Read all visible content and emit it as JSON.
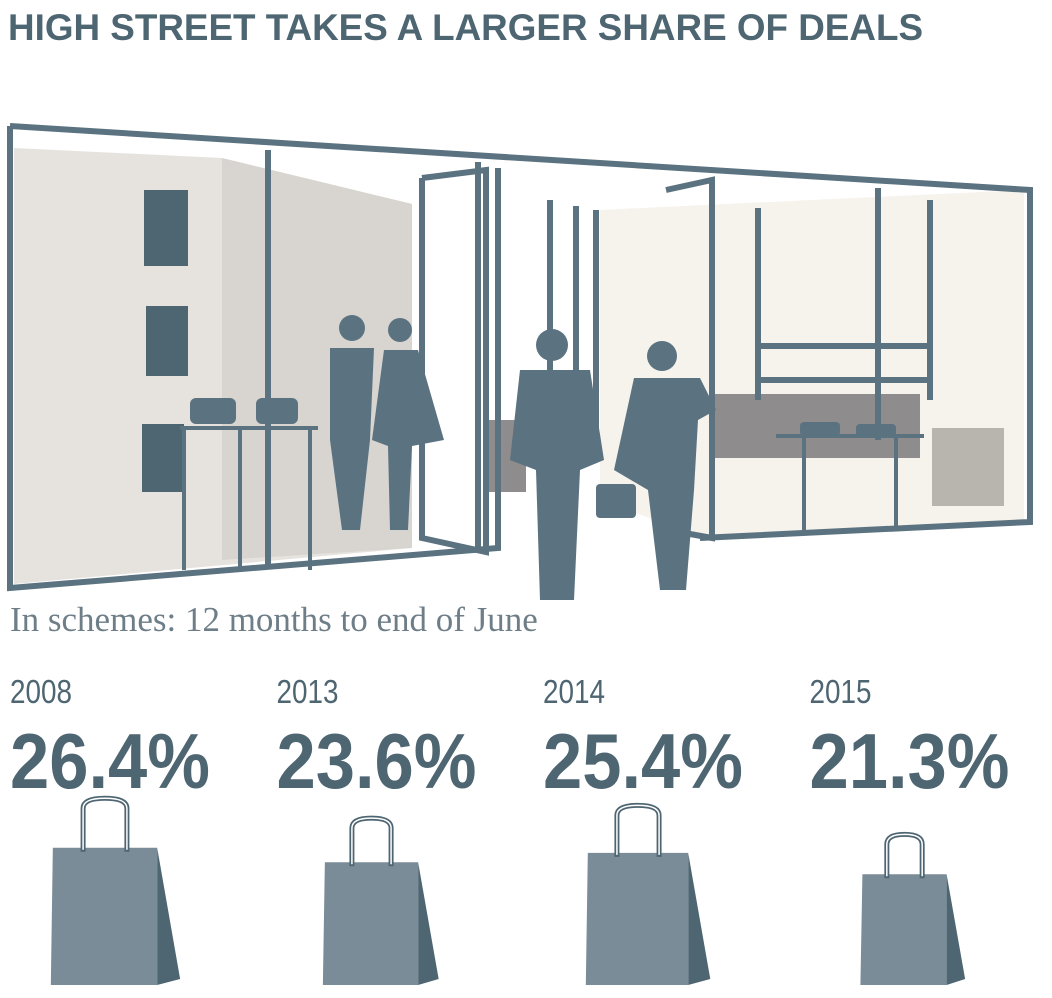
{
  "chart_data": {
    "type": "bag",
    "title": "HIGH STREET TAKES A LARGER SHARE OF DEALS",
    "subtitle": "In schemes: 12 months to end of June",
    "categories": [
      "2008",
      "2013",
      "2014",
      "2015"
    ],
    "values": [
      26.4,
      23.6,
      25.4,
      21.3
    ],
    "value_labels": [
      "26.4%",
      "23.6%",
      "25.4%",
      "21.3%"
    ],
    "color": "#7a8c98"
  }
}
